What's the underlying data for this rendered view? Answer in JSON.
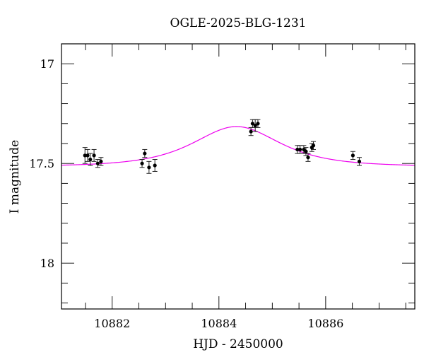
{
  "chart_data": {
    "type": "scatter",
    "title": "OGLE-2025-BLG-1231",
    "xlabel": "HJD - 2450000",
    "ylabel": "I magnitude",
    "xlim": [
      10881.05,
      10887.67
    ],
    "ylim": [
      18.23,
      16.9
    ],
    "y_inverted": true,
    "x_major_ticks": [
      10882,
      10884,
      10886
    ],
    "x_minor_step": 0.5,
    "y_major_ticks": [
      17,
      17.5,
      18
    ],
    "y_tick_labels": [
      "17",
      "17.5",
      "18"
    ],
    "y_minor_step": 0.1,
    "grid": false,
    "series": [
      {
        "name": "data",
        "kind": "errorbar",
        "color": "#000000",
        "x": [
          10881.49,
          10881.54,
          10881.59,
          10881.66,
          10881.73,
          10881.79,
          10882.56,
          10882.61,
          10882.69,
          10882.8,
          10884.6,
          10884.63,
          10884.68,
          10884.73,
          10885.47,
          10885.52,
          10885.59,
          10885.63,
          10885.67,
          10885.74,
          10885.77,
          10886.51,
          10886.63
        ],
        "y": [
          17.46,
          17.46,
          17.48,
          17.46,
          17.5,
          17.49,
          17.5,
          17.45,
          17.52,
          17.51,
          17.34,
          17.3,
          17.31,
          17.3,
          17.43,
          17.43,
          17.43,
          17.44,
          17.47,
          17.42,
          17.41,
          17.46,
          17.49
        ],
        "yerr": [
          0.04,
          0.03,
          0.03,
          0.03,
          0.02,
          0.02,
          0.02,
          0.02,
          0.03,
          0.03,
          0.02,
          0.02,
          0.03,
          0.02,
          0.02,
          0.02,
          0.02,
          0.02,
          0.02,
          0.02,
          0.02,
          0.02,
          0.02
        ]
      },
      {
        "name": "model",
        "kind": "line",
        "color": "#ee00ee",
        "model": "pspl",
        "t0": 10884.33,
        "peak_mag": 17.315,
        "baseline_mag": 17.515,
        "tE": 0.85
      }
    ]
  }
}
